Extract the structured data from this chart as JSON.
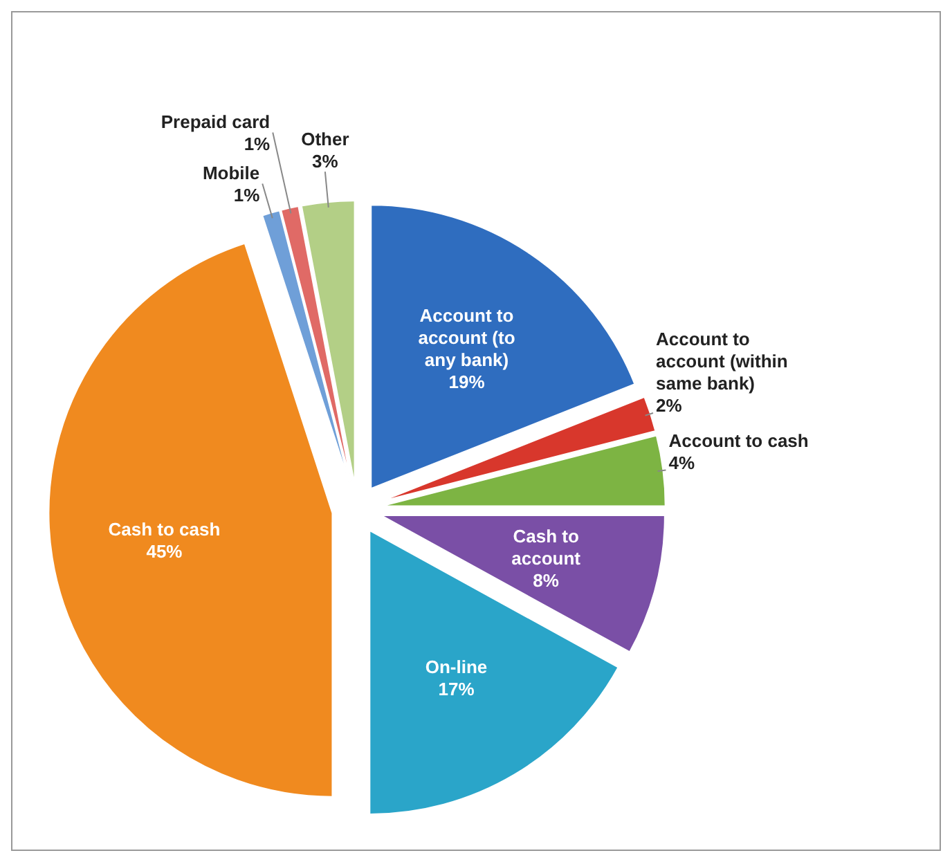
{
  "chart_data": {
    "type": "pie",
    "categories": [
      "Account to account (to any bank)",
      "Account to account (within same bank)",
      "Account to cash",
      "Cash to account",
      "On-line",
      "Cash to cash",
      "Mobile",
      "Prepaid card",
      "Other"
    ],
    "values": [
      19,
      2,
      4,
      8,
      17,
      45,
      1,
      1,
      3
    ],
    "value_labels": [
      "19%",
      "2%",
      "4%",
      "8%",
      "17%",
      "45%",
      "1%",
      "1%",
      "3%"
    ],
    "colors": [
      "#2f6dbf",
      "#d8372c",
      "#7db443",
      "#7a4fa6",
      "#2aa5c9",
      "#f08a1f",
      "#6f9fd8",
      "#e06a66",
      "#b3cf86"
    ]
  }
}
